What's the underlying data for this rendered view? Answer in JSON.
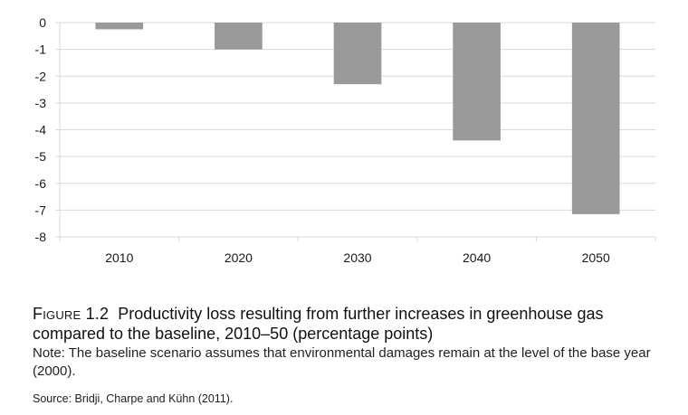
{
  "chart_data": {
    "type": "bar",
    "categories": [
      "2010",
      "2020",
      "2030",
      "2040",
      "2050"
    ],
    "values": [
      -0.25,
      -1.0,
      -2.3,
      -4.4,
      -7.15
    ],
    "title": "",
    "xlabel": "",
    "ylabel": "",
    "ylim": [
      -8,
      0
    ],
    "yticks": [
      0,
      -1,
      -2,
      -3,
      -4,
      -5,
      -6,
      -7,
      -8
    ],
    "grid": true,
    "bar_color": "#999999",
    "grid_color": "#d9d9d9"
  },
  "caption": {
    "figure_label": "Figure 1.2",
    "title": "Productivity loss resulting from further increases in greenhouse gas compared to the baseline, 2010–50 (percentage points)",
    "note": "Note: The baseline scenario assumes that environmental damages remain at the level of the base year (2000).",
    "source": "Source: Bridji, Charpe and Kühn (2011)."
  }
}
